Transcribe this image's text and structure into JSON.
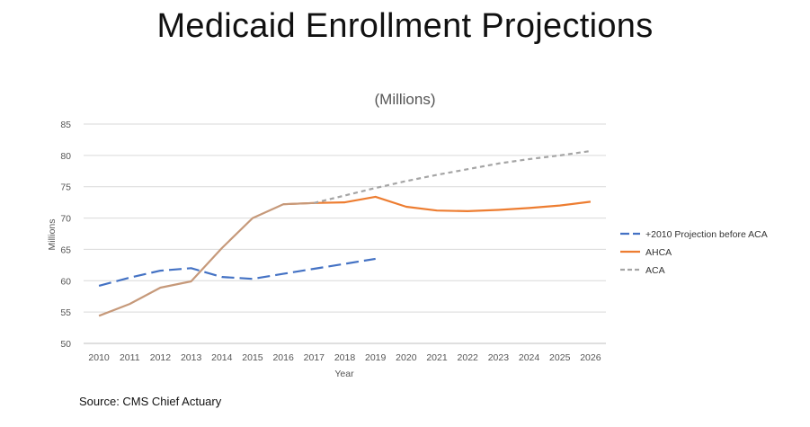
{
  "header": {
    "title": "Medicaid Enrollment Projections"
  },
  "footer": {
    "source": "Source: CMS Chief Actuary"
  },
  "chart_data": {
    "type": "line",
    "title": "Medicaid Enrollment Projections",
    "subtitle": "(Millions)",
    "xlabel": "Year",
    "ylabel": "Millions",
    "x": [
      2010,
      2011,
      2012,
      2013,
      2014,
      2015,
      2016,
      2017,
      2018,
      2019,
      2020,
      2021,
      2022,
      2023,
      2024,
      2025,
      2026
    ],
    "xticks": [
      "2010",
      "2011",
      "2012",
      "2013",
      "2014",
      "2015",
      "2016",
      "2017",
      "2018",
      "2019",
      "2020",
      "2021",
      "2022",
      "2023",
      "2024",
      "2025",
      "2026"
    ],
    "yticks": [
      "50",
      "55",
      "60",
      "65",
      "70",
      "75",
      "80",
      "85"
    ],
    "ylim": [
      50,
      85
    ],
    "grid": true,
    "legend_position": "right",
    "series": [
      {
        "name": "+2010 Projection before ACA",
        "color": "#4472C4",
        "style": "long-dash",
        "x": [
          2010,
          2011,
          2012,
          2013,
          2014,
          2015,
          2016,
          2017,
          2018,
          2019
        ],
        "values": [
          59.2,
          60.5,
          61.6,
          62.0,
          60.6,
          60.3,
          61.1,
          61.9,
          62.7,
          63.5
        ]
      },
      {
        "name": "AHCA",
        "color": "#ED7D31",
        "style": "solid",
        "x": [
          2016,
          2017,
          2018,
          2019,
          2020,
          2021,
          2022,
          2023,
          2024,
          2025,
          2026
        ],
        "values": [
          72.2,
          72.4,
          72.5,
          73.4,
          71.8,
          71.2,
          71.1,
          71.3,
          71.6,
          72.0,
          72.6
        ]
      },
      {
        "name": "ACA",
        "color": "#A5A5A5",
        "style": "dashed",
        "x": [
          2017,
          2018,
          2019,
          2020,
          2021,
          2022,
          2023,
          2024,
          2025,
          2026
        ],
        "values": [
          72.4,
          73.6,
          74.8,
          75.9,
          76.9,
          77.8,
          78.7,
          79.4,
          80.0,
          80.7
        ]
      },
      {
        "name": "",
        "color": "#C6997A",
        "style": "solid",
        "x": [
          2010,
          2011,
          2012,
          2013,
          2014,
          2015,
          2016,
          2017
        ],
        "values": [
          54.4,
          56.3,
          58.9,
          59.9,
          65.2,
          70.0,
          72.2,
          72.4
        ]
      }
    ],
    "legend": [
      "+2010 Projection before ACA",
      "AHCA",
      "ACA"
    ]
  }
}
